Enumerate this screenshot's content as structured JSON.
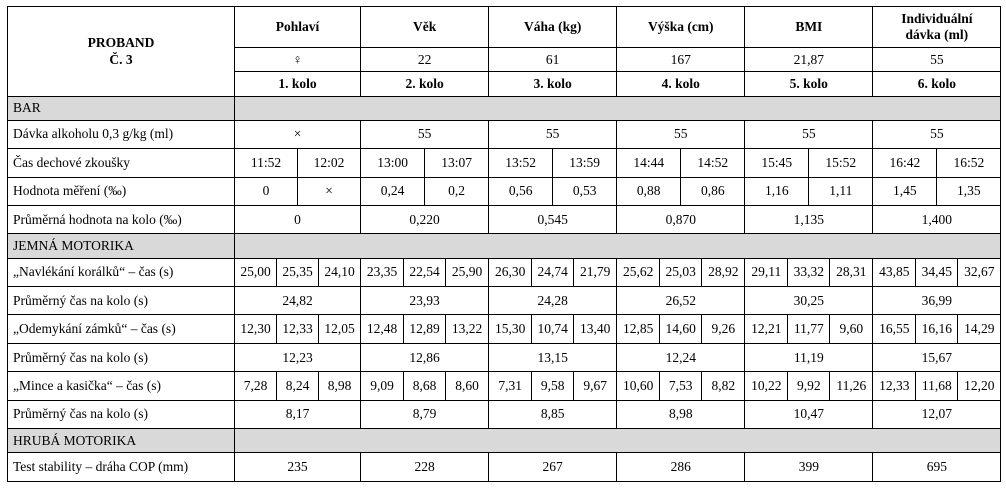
{
  "proband": {
    "line1": "PROBAND",
    "line2": "Č. 3"
  },
  "header": {
    "pohlavi": "Pohlaví",
    "vek": "Věk",
    "vaha": "Váha (kg)",
    "vyska": "Výška (cm)",
    "bmi": "BMI",
    "davka_line1": "Individuální",
    "davka_line2": "dávka (ml)"
  },
  "values": {
    "pohlavi": "♀",
    "vek": "22",
    "vaha": "61",
    "vyska": "167",
    "bmi": "21,87",
    "davka": "55"
  },
  "rounds": [
    "1. kolo",
    "2. kolo",
    "3. kolo",
    "4. kolo",
    "5. kolo",
    "6. kolo"
  ],
  "sections": {
    "bar": "BAR",
    "jemna": "JEMNÁ MOTORIKA",
    "hruba": "HRUBÁ MOTORIKA"
  },
  "bar": {
    "davka": {
      "label": "Dávka alkoholu 0,3 g/kg (ml)",
      "values": [
        "×",
        "55",
        "55",
        "55",
        "55",
        "55"
      ]
    },
    "cas": {
      "label": "Čas dechové zkoušky",
      "values": [
        "11:52",
        "12:02",
        "13:00",
        "13:07",
        "13:52",
        "13:59",
        "14:44",
        "14:52",
        "15:45",
        "15:52",
        "16:42",
        "16:52"
      ]
    },
    "hodnota": {
      "label": "Hodnota měření (‰)",
      "values": [
        "0",
        "×",
        "0,24",
        "0,2",
        "0,56",
        "0,53",
        "0,88",
        "0,86",
        "1,16",
        "1,11",
        "1,45",
        "1,35"
      ]
    },
    "prumer": {
      "label": "Průměrná hodnota na kolo (‰)",
      "values": [
        "0",
        "0,220",
        "0,545",
        "0,870",
        "1,135",
        "1,400"
      ]
    }
  },
  "jemna": {
    "koralky": {
      "label": "„Navlékání korálků“ – čas (s)",
      "values": [
        "25,00",
        "25,35",
        "24,10",
        "23,35",
        "22,54",
        "25,90",
        "26,30",
        "24,74",
        "21,79",
        "25,62",
        "25,03",
        "28,92",
        "29,11",
        "33,32",
        "28,31",
        "43,85",
        "34,45",
        "32,67"
      ]
    },
    "koralky_prumer": {
      "label": "Průměrný čas na kolo (s)",
      "values": [
        "24,82",
        "23,93",
        "24,28",
        "26,52",
        "30,25",
        "36,99"
      ]
    },
    "zamky": {
      "label": "„Odemykání zámků“ – čas (s)",
      "values": [
        "12,30",
        "12,33",
        "12,05",
        "12,48",
        "12,89",
        "13,22",
        "15,30",
        "10,74",
        "13,40",
        "12,85",
        "14,60",
        "9,26",
        "12,21",
        "11,77",
        "9,60",
        "16,55",
        "16,16",
        "14,29"
      ]
    },
    "zamky_prumer": {
      "label": "Průměrný čas na kolo (s)",
      "values": [
        "12,23",
        "12,86",
        "13,15",
        "12,24",
        "11,19",
        "15,67"
      ]
    },
    "mince": {
      "label": "„Mince a kasička“ – čas (s)",
      "values": [
        "7,28",
        "8,24",
        "8,98",
        "9,09",
        "8,68",
        "8,60",
        "7,31",
        "9,58",
        "9,67",
        "10,60",
        "7,53",
        "8,82",
        "10,22",
        "9,92",
        "11,26",
        "12,33",
        "11,68",
        "12,20"
      ]
    },
    "mince_prumer": {
      "label": "Průměrný čas na kolo (s)",
      "values": [
        "8,17",
        "8,79",
        "8,85",
        "8,98",
        "10,47",
        "12,07"
      ]
    }
  },
  "hruba": {
    "stabilita": {
      "label": "Test stability – dráha COP (mm)",
      "values": [
        "235",
        "228",
        "267",
        "286",
        "399",
        "695"
      ]
    }
  }
}
